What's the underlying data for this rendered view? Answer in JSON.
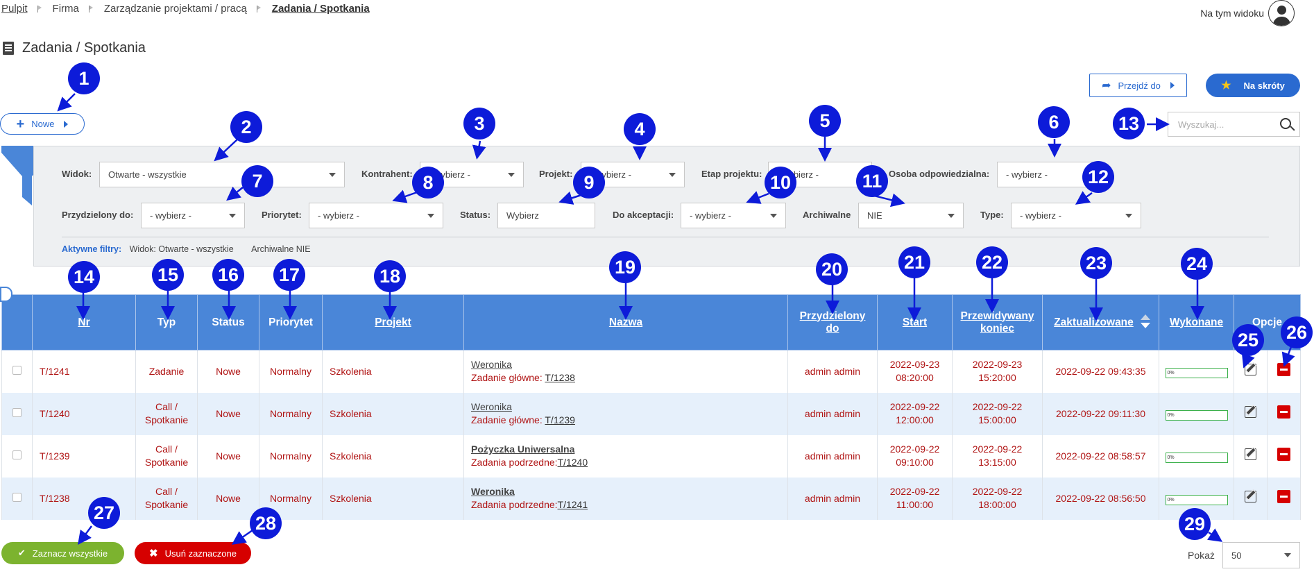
{
  "breadcrumb": [
    "Pulpit",
    "Firma",
    "Zarządzanie projektami / pracą",
    "Zadania / Spotkania"
  ],
  "view_label": "Na tym widoku",
  "page_title": "Zadania / Spotkania",
  "toolbar": {
    "new_label": "Nowe",
    "goto_label": "Przejdź do",
    "shortcuts_label": "Na skróty"
  },
  "search": {
    "placeholder": "Wyszukaj..."
  },
  "filters": {
    "widok": {
      "label": "Widok:",
      "value": "Otwarte - wszystkie"
    },
    "kontrahent": {
      "label": "Kontrahent:",
      "value": "- wybierz -"
    },
    "projekt": {
      "label": "Projekt:",
      "value": "- wybierz -"
    },
    "etap": {
      "label": "Etap projektu:",
      "value": "- wybierz -"
    },
    "osoba": {
      "label": "Osoba odpowiedzialna:",
      "value": "- wybierz -"
    },
    "przydzielony": {
      "label": "Przydzielony do:",
      "value": "- wybierz -"
    },
    "priorytet": {
      "label": "Priorytet:",
      "value": "- wybierz -"
    },
    "status": {
      "label": "Status:",
      "value": "Wybierz"
    },
    "akceptacja": {
      "label": "Do akceptacji:",
      "value": "- wybierz -"
    },
    "archiwalne": {
      "label": "Archiwalne",
      "value": "NIE"
    },
    "type": {
      "label": "Type:",
      "value": "- wybierz -"
    }
  },
  "active_filters": {
    "label": "Aktywne filtry:",
    "items": [
      "Widok: Otwarte - wszystkie",
      "Archiwalne NIE"
    ]
  },
  "table": {
    "headers": {
      "nr": "Nr",
      "typ": "Typ",
      "status": "Status",
      "priorytet": "Priorytet",
      "projekt": "Projekt",
      "nazwa": "Nazwa",
      "przydzielony_1": "Przydzielony",
      "przydzielony_2": "do",
      "start": "Start",
      "koniec_1": "Przewidywany",
      "koniec_2": "koniec",
      "zaktualizowane": "Zaktualizowane",
      "wykonane": "Wykonane",
      "opcje": "Opcje"
    },
    "rows": [
      {
        "nr": "T/1241",
        "typ_1": "Zadanie",
        "typ_2": "",
        "status": "Nowe",
        "priorytet": "Normalny",
        "projekt": "Szkolenia",
        "nazwa": "Weronika",
        "sub_label": "Zadanie główne: ",
        "sub_link": "T/1238",
        "przydzielony": "admin admin",
        "start_d": "2022-09-23",
        "start_t": "08:20:00",
        "koniec_d": "2022-09-23",
        "koniec_t": "15:20:00",
        "zakt": "2022-09-22 09:43:35",
        "wyk_label": "0%",
        "progress": 0
      },
      {
        "nr": "T/1240",
        "typ_1": "Call /",
        "typ_2": "Spotkanie",
        "status": "Nowe",
        "priorytet": "Normalny",
        "projekt": "Szkolenia",
        "nazwa": "Weronika",
        "sub_label": "Zadanie główne: ",
        "sub_link": "T/1239",
        "przydzielony": "admin admin",
        "start_d": "2022-09-22",
        "start_t": "12:00:00",
        "koniec_d": "2022-09-22",
        "koniec_t": "15:00:00",
        "zakt": "2022-09-22 09:11:30",
        "wyk_label": "0%",
        "progress": 0
      },
      {
        "nr": "T/1239",
        "typ_1": "Call /",
        "typ_2": "Spotkanie",
        "status": "Nowe",
        "priorytet": "Normalny",
        "projekt": "Szkolenia",
        "nazwa": "Pożyczka Uniwersalna",
        "sub_label": "Zadania podrzedne:",
        "sub_link": "T/1240",
        "przydzielony": "admin admin",
        "start_d": "2022-09-22",
        "start_t": "09:10:00",
        "koniec_d": "2022-09-22",
        "koniec_t": "13:15:00",
        "zakt": "2022-09-22 08:58:57",
        "wyk_label": "0%",
        "progress": 0
      },
      {
        "nr": "T/1238",
        "typ_1": "Call /",
        "typ_2": "Spotkanie",
        "status": "Nowe",
        "priorytet": "Normalny",
        "projekt": "Szkolenia",
        "nazwa": "Weronika",
        "sub_label": "Zadania podrzedne:",
        "sub_link": "T/1241",
        "przydzielony": "admin admin",
        "start_d": "2022-09-22",
        "start_t": "11:00:00",
        "koniec_d": "2022-09-22",
        "koniec_t": "18:00:00",
        "zakt": "2022-09-22 08:56:50",
        "wyk_label": "0%",
        "progress": 0
      }
    ]
  },
  "footer": {
    "select_all": "Zaznacz wszystkie",
    "delete_selected": "Usuń zaznaczone",
    "show_label": "Pokaż",
    "page_size": "50"
  },
  "markers": [
    "1",
    "2",
    "3",
    "4",
    "5",
    "6",
    "7",
    "8",
    "9",
    "10",
    "11",
    "12",
    "13",
    "14",
    "15",
    "16",
    "17",
    "18",
    "19",
    "20",
    "21",
    "22",
    "23",
    "24",
    "25",
    "26",
    "27",
    "28",
    "29"
  ],
  "colors": {
    "accent": "#4a86d8",
    "marker": "#0d1bd9",
    "danger": "#d60000",
    "success": "#7cb32f",
    "text_red": "#b01414"
  }
}
